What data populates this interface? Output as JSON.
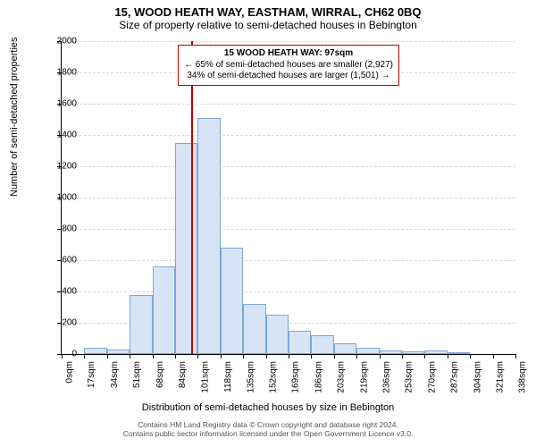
{
  "titles": {
    "main": "15, WOOD HEATH WAY, EASTHAM, WIRRAL, CH62 0BQ",
    "sub": "Size of property relative to semi-detached houses in Bebington"
  },
  "axes": {
    "ylabel": "Number of semi-detached properties",
    "xlabel": "Distribution of semi-detached houses by size in Bebington",
    "ylim": [
      0,
      2000
    ],
    "ytick_step": 200,
    "grid_color": "#d9d9d9",
    "label_fontsize": 11,
    "tick_fontsize": 10
  },
  "chart": {
    "type": "histogram",
    "bin_width_sqm": 17,
    "x_min": 0,
    "x_max": 340,
    "xtick_step_sqm": 17,
    "bar_fill": "#d6e4f5",
    "bar_border": "#7ea6d9",
    "background_color": "#ffffff",
    "values": [
      0,
      40,
      30,
      380,
      560,
      1350,
      1510,
      680,
      320,
      250,
      150,
      120,
      70,
      40,
      25,
      20,
      25,
      10,
      0,
      0
    ],
    "xtick_labels": [
      "0sqm",
      "17sqm",
      "34sqm",
      "51sqm",
      "68sqm",
      "84sqm",
      "101sqm",
      "118sqm",
      "135sqm",
      "152sqm",
      "169sqm",
      "186sqm",
      "203sqm",
      "219sqm",
      "236sqm",
      "253sqm",
      "270sqm",
      "287sqm",
      "304sqm",
      "321sqm",
      "338sqm"
    ]
  },
  "marker": {
    "value_sqm": 97,
    "color": "#c00000"
  },
  "callout": {
    "line1": "15 WOOD HEATH WAY: 97sqm",
    "line2": "← 65% of semi-detached houses are smaller (2,927)",
    "line3": "34% of semi-detached houses are larger (1,501) →",
    "border_color": "#c00000"
  },
  "footer": {
    "line1": "Contains HM Land Registry data © Crown copyright and database right 2024.",
    "line2": "Contains public sector information licensed under the Open Government Licence v3.0."
  }
}
